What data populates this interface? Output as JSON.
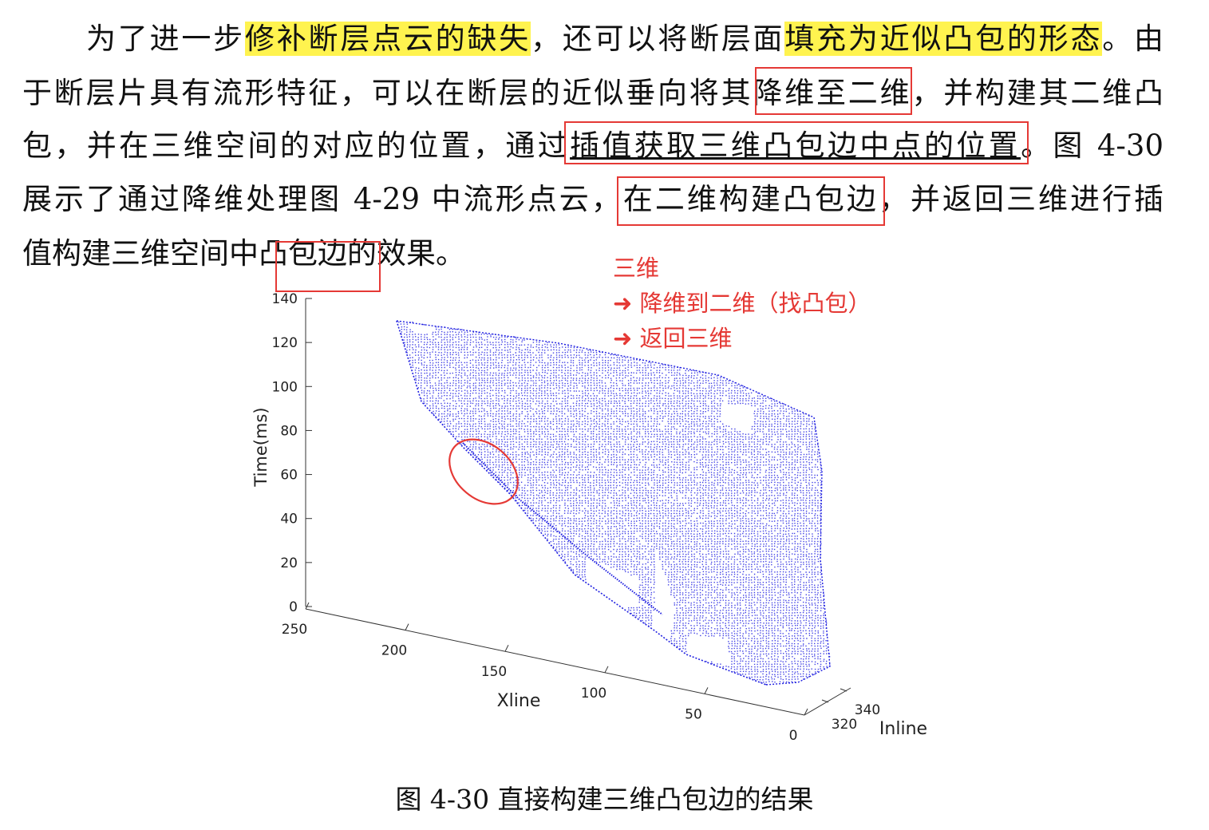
{
  "paragraph": {
    "l1_a": "为了进一步",
    "l1_hl1": "修补断层点云的缺失",
    "l1_b": "，还可以将断层面",
    "l1_hl2": "填充为近似凸包的形态",
    "l1_c": "。由",
    "l2_a": "于断层片具有流形特征，可以在断层的近似垂向将其",
    "l2_b": "降维至二维",
    "l2_c": "，并构建其二维凸",
    "l3_a": "包，并在三维空间的对应的位置，通过",
    "l3_b": "插值获取三维凸包边中点的位置",
    "l3_c": "。图 4-30",
    "l4_a": "展示了通过降维处理图 4-29 中流形点云，",
    "l4_b": "在二维构建凸包边，",
    "l4_c": "并返回三维进行插",
    "l5_a": "值构建三维空间中",
    "l5_b": "凸包边",
    "l5_c": "的效果。"
  },
  "annotation": {
    "line1": "三维",
    "line2": "➜  降维到二维（找凸包）",
    "line3": "➜ 返回三维"
  },
  "caption": "图 4-30  直接构建三维凸包边的结果",
  "chart_data": {
    "type": "scatter",
    "title": "",
    "zlabel": "Time(ms)",
    "xlabel": "Xline",
    "ylabel": "Inline",
    "z_ticks": [
      "0",
      "20",
      "40",
      "60",
      "80",
      "100",
      "120",
      "140"
    ],
    "x_ticks": [
      "250",
      "200",
      "150",
      "100",
      "50",
      "0"
    ],
    "y_ticks": [
      "320",
      "340"
    ],
    "point_color": "#1f1fe0",
    "highlight_color": "#e53935"
  }
}
